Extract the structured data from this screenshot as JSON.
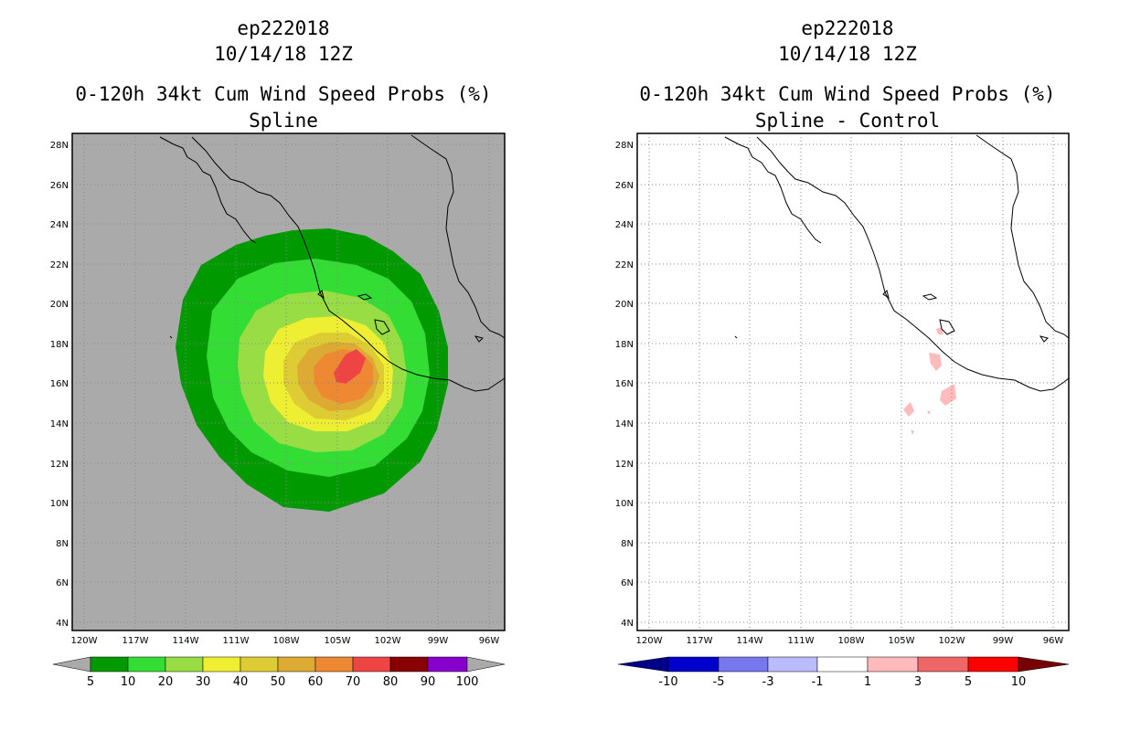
{
  "panels": [
    {
      "id": "left",
      "title_lines": [
        "ep222018",
        "10/14/18 12Z",
        "0-120h 34kt Cum Wind Speed Probs (%)",
        "Spline"
      ],
      "background": "#aaaaaa",
      "lat_ticks": [
        "28N",
        "26N",
        "24N",
        "22N",
        "20N",
        "18N",
        "16N",
        "14N",
        "12N",
        "10N",
        "8N",
        "6N",
        "4N"
      ],
      "lon_ticks": [
        "120W",
        "117W",
        "114W",
        "111W",
        "108W",
        "105W",
        "102W",
        "99W",
        "96W"
      ],
      "colorbar": {
        "labels": [
          "5",
          "10",
          "20",
          "30",
          "40",
          "50",
          "60",
          "70",
          "80",
          "90",
          "100"
        ],
        "colors": [
          "#009900",
          "#33dd33",
          "#99dd44",
          "#eeee33",
          "#ddcc33",
          "#ddaa33",
          "#ee8833",
          "#ee4444",
          "#880000",
          "#8800cc"
        ],
        "end_color_left": "#aaaaaa",
        "end_color_right": "#aaaaaa"
      }
    },
    {
      "id": "right",
      "title_lines": [
        "ep222018",
        "10/14/18 12Z",
        "0-120h 34kt Cum Wind Speed Probs (%)",
        "Spline - Control"
      ],
      "background": "#ffffff",
      "lat_ticks": [
        "28N",
        "26N",
        "24N",
        "22N",
        "20N",
        "18N",
        "16N",
        "14N",
        "12N",
        "10N",
        "8N",
        "6N",
        "4N"
      ],
      "lon_ticks": [
        "120W",
        "117W",
        "114W",
        "111W",
        "108W",
        "105W",
        "102W",
        "99W",
        "96W"
      ],
      "colorbar": {
        "labels": [
          "-10",
          "-5",
          "-3",
          "-1",
          "1",
          "3",
          "5",
          "10"
        ],
        "colors": [
          "#0000cc",
          "#7777ee",
          "#bbbbff",
          "#ffffff",
          "#ffbbbb",
          "#ee6666",
          "#ff0000"
        ],
        "end_color_left": "#000088",
        "end_color_right": "#770000"
      }
    }
  ],
  "icons": {
    "coastline": "coastline-icon",
    "gridline": "gridline-icon"
  }
}
